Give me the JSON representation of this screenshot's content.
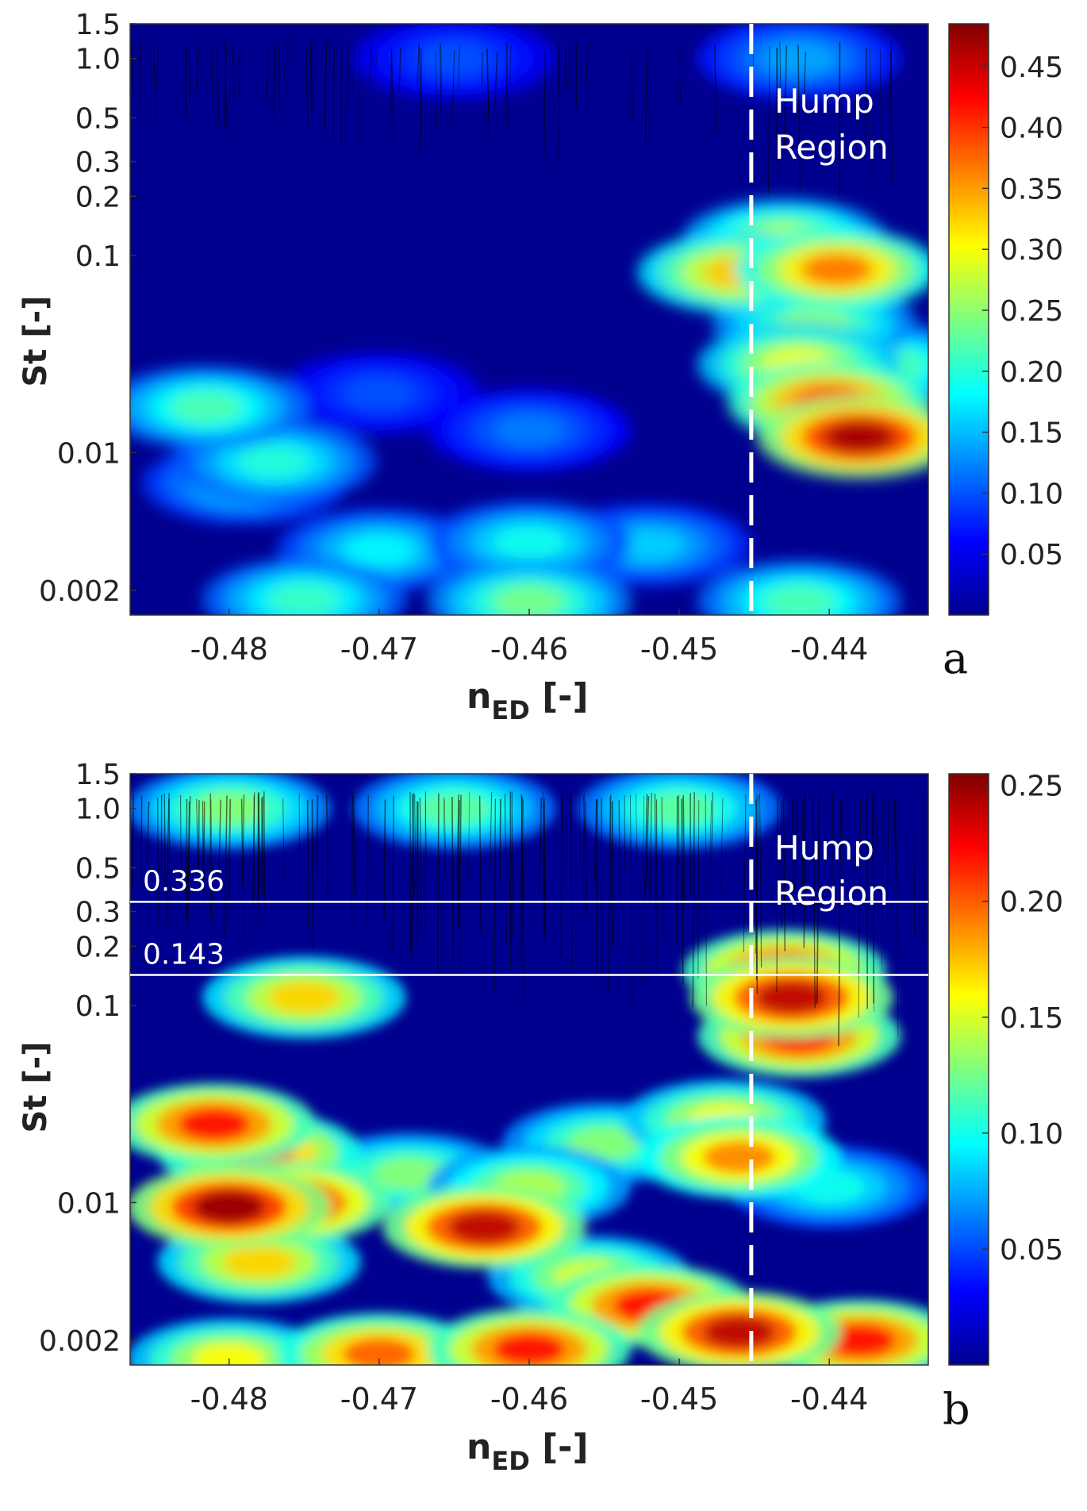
{
  "chart_data": [
    {
      "type": "heatmap",
      "panel_label": "a",
      "xlabel": "n",
      "xlabel_sub": "ED",
      "xlabel_unit": " [-]",
      "ylabel": "St [-]",
      "x_ticks": [
        -0.48,
        -0.47,
        -0.46,
        -0.45,
        -0.44
      ],
      "x_tick_labels": [
        "-0.48",
        "-0.47",
        "-0.46",
        "-0.45",
        "-0.44"
      ],
      "xlim": [
        -0.4866,
        -0.4334
      ],
      "y_scale": "log",
      "ylim": [
        0.0015,
        1.5
      ],
      "y_ticks": [
        1.5,
        1.0,
        0.5,
        0.3,
        0.2,
        0.1,
        0.01,
        0.002
      ],
      "y_tick_labels": [
        "1.5",
        "1.0",
        "0.5",
        "0.3",
        "0.2",
        "0.1",
        "0.01",
        "0.002"
      ],
      "colorbar": {
        "min": 0.0,
        "max": 0.485,
        "ticks": [
          0.05,
          0.1,
          0.15,
          0.2,
          0.25,
          0.3,
          0.35,
          0.4,
          0.45
        ],
        "tick_labels": [
          "0.05",
          "0.10",
          "0.15",
          "0.20",
          "0.25",
          "0.30",
          "0.35",
          "0.40",
          "0.45"
        ]
      },
      "divider_x": -0.4452,
      "region_label": [
        "Hump",
        "Region"
      ],
      "reference_lines": [],
      "hotspots": [
        {
          "x": -0.4815,
          "y": 0.017,
          "v": 0.22
        },
        {
          "x": -0.477,
          "y": 0.009,
          "v": 0.2
        },
        {
          "x": -0.479,
          "y": 0.007,
          "v": 0.17
        },
        {
          "x": -0.46,
          "y": 0.0035,
          "v": 0.19
        },
        {
          "x": -0.47,
          "y": 0.0032,
          "v": 0.18
        },
        {
          "x": -0.452,
          "y": 0.0034,
          "v": 0.16
        },
        {
          "x": -0.46,
          "y": 0.00175,
          "v": 0.24
        },
        {
          "x": -0.475,
          "y": 0.0018,
          "v": 0.21
        },
        {
          "x": -0.442,
          "y": 0.00175,
          "v": 0.22
        },
        {
          "x": -0.438,
          "y": 0.012,
          "v": 0.47
        },
        {
          "x": -0.44,
          "y": 0.018,
          "v": 0.4
        },
        {
          "x": -0.442,
          "y": 0.028,
          "v": 0.3
        },
        {
          "x": -0.4395,
          "y": 0.085,
          "v": 0.37
        },
        {
          "x": -0.446,
          "y": 0.082,
          "v": 0.33
        },
        {
          "x": -0.443,
          "y": 0.12,
          "v": 0.27
        },
        {
          "x": -0.441,
          "y": 0.045,
          "v": 0.25
        },
        {
          "x": -0.436,
          "y": 0.028,
          "v": 0.22
        },
        {
          "x": -0.46,
          "y": 0.013,
          "v": 0.12
        },
        {
          "x": -0.47,
          "y": 0.02,
          "v": 0.1
        },
        {
          "x": -0.465,
          "y": 1.0,
          "v": 0.1
        },
        {
          "x": -0.442,
          "y": 1.0,
          "v": 0.14
        }
      ]
    },
    {
      "type": "heatmap",
      "panel_label": "b",
      "xlabel": "n",
      "xlabel_sub": "ED",
      "xlabel_unit": " [-]",
      "ylabel": "St [-]",
      "x_ticks": [
        -0.48,
        -0.47,
        -0.46,
        -0.45,
        -0.44
      ],
      "x_tick_labels": [
        "-0.48",
        "-0.47",
        "-0.46",
        "-0.45",
        "-0.44"
      ],
      "xlim": [
        -0.4866,
        -0.4334
      ],
      "y_scale": "log",
      "ylim": [
        0.0015,
        1.5
      ],
      "y_ticks": [
        1.5,
        1.0,
        0.5,
        0.3,
        0.2,
        0.1,
        0.01,
        0.002
      ],
      "y_tick_labels": [
        "1.5",
        "1.0",
        "0.5",
        "0.3",
        "0.2",
        "0.1",
        "0.01",
        "0.002"
      ],
      "colorbar": {
        "min": 0.0,
        "max": 0.255,
        "ticks": [
          0.05,
          0.1,
          0.15,
          0.2,
          0.25
        ],
        "tick_labels": [
          "0.05",
          "0.10",
          "0.15",
          "0.20",
          "0.25"
        ]
      },
      "divider_x": -0.4452,
      "region_label": [
        "Hump",
        "Region"
      ],
      "reference_lines": [
        {
          "y": 0.336,
          "label": "0.336"
        },
        {
          "y": 0.143,
          "label": "0.143"
        }
      ],
      "hotspots": [
        {
          "x": -0.481,
          "y": 0.025,
          "v": 0.22
        },
        {
          "x": -0.478,
          "y": 0.018,
          "v": 0.2
        },
        {
          "x": -0.48,
          "y": 0.0095,
          "v": 0.25
        },
        {
          "x": -0.476,
          "y": 0.01,
          "v": 0.23
        },
        {
          "x": -0.463,
          "y": 0.0075,
          "v": 0.24
        },
        {
          "x": -0.478,
          "y": 0.005,
          "v": 0.17
        },
        {
          "x": -0.46,
          "y": 0.012,
          "v": 0.14
        },
        {
          "x": -0.468,
          "y": 0.014,
          "v": 0.13
        },
        {
          "x": -0.455,
          "y": 0.02,
          "v": 0.13
        },
        {
          "x": -0.446,
          "y": 0.017,
          "v": 0.19
        },
        {
          "x": -0.447,
          "y": 0.026,
          "v": 0.16
        },
        {
          "x": -0.442,
          "y": 0.07,
          "v": 0.22
        },
        {
          "x": -0.4425,
          "y": 0.11,
          "v": 0.24
        },
        {
          "x": -0.443,
          "y": 0.15,
          "v": 0.22
        },
        {
          "x": -0.475,
          "y": 0.11,
          "v": 0.17
        },
        {
          "x": -0.44,
          "y": 0.012,
          "v": 0.1
        },
        {
          "x": -0.452,
          "y": 0.003,
          "v": 0.22
        },
        {
          "x": -0.446,
          "y": 0.0022,
          "v": 0.24
        },
        {
          "x": -0.438,
          "y": 0.002,
          "v": 0.22
        },
        {
          "x": -0.46,
          "y": 0.0018,
          "v": 0.22
        },
        {
          "x": -0.47,
          "y": 0.0017,
          "v": 0.2
        },
        {
          "x": -0.48,
          "y": 0.0016,
          "v": 0.16
        },
        {
          "x": -0.456,
          "y": 0.0042,
          "v": 0.15
        },
        {
          "x": -0.465,
          "y": 1.0,
          "v": 0.12
        },
        {
          "x": -0.48,
          "y": 1.0,
          "v": 0.13
        },
        {
          "x": -0.45,
          "y": 1.0,
          "v": 0.12
        }
      ]
    }
  ]
}
